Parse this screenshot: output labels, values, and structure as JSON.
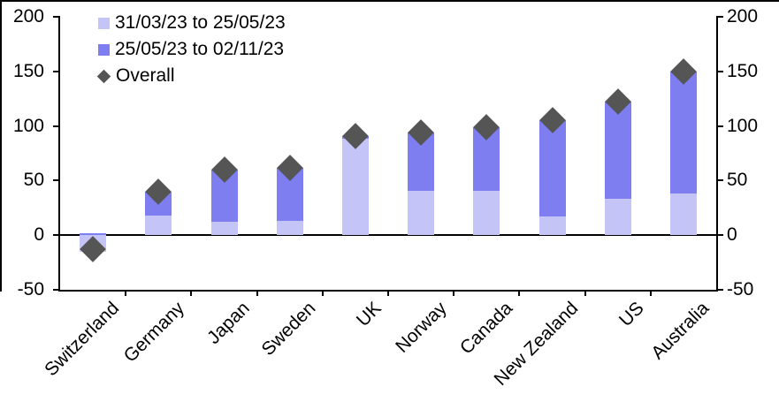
{
  "chart_data": {
    "type": "bar",
    "subtype": "stacked-with-overall-marker",
    "categories": [
      "Switzerland",
      "Germany",
      "Japan",
      "Sweden",
      "UK",
      "Norway",
      "Canada",
      "New Zealand",
      "US",
      "Australia"
    ],
    "series": [
      {
        "name": "31/03/23 to 25/05/23",
        "color": "#c4c4f6",
        "values": [
          -15,
          18,
          12,
          13,
          88,
          41,
          41,
          17,
          33,
          38
        ]
      },
      {
        "name": "25/05/23 to 02/11/23",
        "color": "#7e7ef0",
        "values": [
          2,
          22,
          48,
          49,
          3,
          53,
          58,
          88,
          89,
          112
        ]
      }
    ],
    "overall": {
      "name": "Overall",
      "color": "#555555",
      "values": [
        -13,
        40,
        60,
        62,
        91,
        94,
        99,
        105,
        122,
        150
      ]
    },
    "title": "",
    "xlabel": "",
    "ylabel": "",
    "ylim": [
      -50,
      200
    ],
    "ytick_step": 50,
    "ytick_labels": [
      "200",
      "150",
      "100",
      "50",
      "0",
      "-50"
    ],
    "axis_labels_both_sides": true,
    "grid": false,
    "legend_position": "top-left",
    "colors": {
      "axis": "#000000",
      "text": "#000000",
      "background": "#ffffff",
      "period1": "#c4c4f6",
      "period2": "#7e7ef0",
      "overall_marker": "#555555"
    }
  }
}
